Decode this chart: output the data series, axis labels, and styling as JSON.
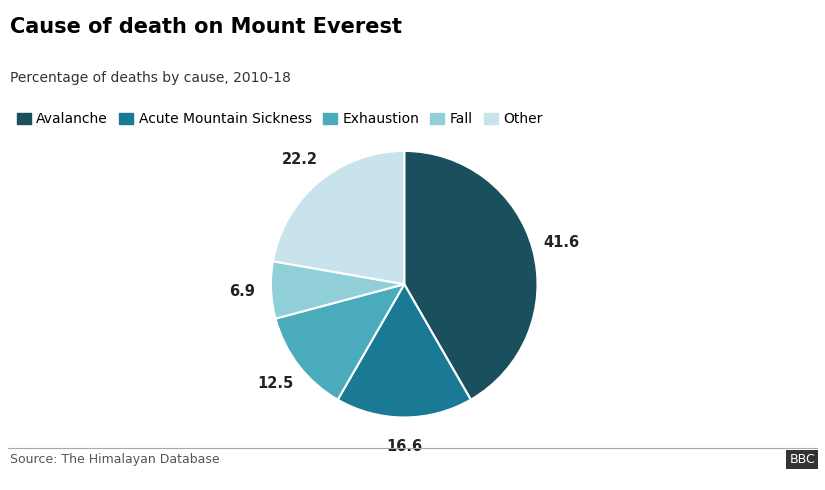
{
  "title": "Cause of death on Mount Everest",
  "subtitle": "Percentage of deaths by cause, 2010-18",
  "source": "Source: The Himalayan Database",
  "labels": [
    "Avalanche",
    "Acute Mountain Sickness",
    "Exhaustion",
    "Fall",
    "Other"
  ],
  "values": [
    41.6,
    16.6,
    12.5,
    6.9,
    22.2
  ],
  "colors": [
    "#1a4f5e",
    "#1a7a96",
    "#4aabbc",
    "#90cfd8",
    "#c8e3eb"
  ],
  "autopct_values": [
    "41.6",
    "16.6",
    "12.5",
    "6.9",
    "22.2"
  ],
  "title_fontsize": 15,
  "subtitle_fontsize": 10,
  "legend_fontsize": 10,
  "source_fontsize": 9,
  "background_color": "#ffffff",
  "start_angle": 90
}
